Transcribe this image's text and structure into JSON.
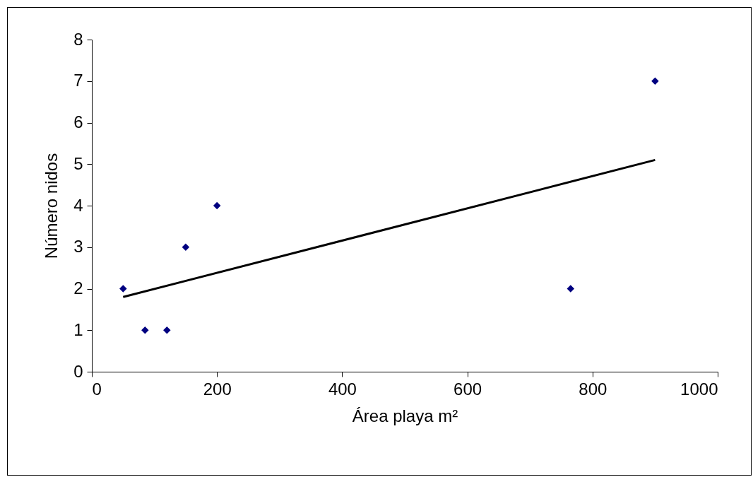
{
  "chart_data": {
    "type": "scatter",
    "xlabel": "Área playa m²",
    "ylabel": "Número nidos",
    "xlim": [
      0,
      1000
    ],
    "xticks": [
      0,
      200,
      400,
      600,
      800,
      1000
    ],
    "ylim": [
      0,
      8
    ],
    "yticks": [
      0,
      1,
      2,
      3,
      4,
      5,
      6,
      7,
      8
    ],
    "grid": false,
    "marker": "diamond",
    "series": [
      {
        "color": "#000080",
        "x": [
          50,
          85,
          120,
          150,
          200,
          765,
          900
        ],
        "values": [
          2,
          1,
          1,
          3,
          4,
          2,
          7
        ]
      },
      {
        "type": "line",
        "color": "#000000",
        "x": [
          50,
          900
        ],
        "values": [
          1.8,
          5.1
        ],
        "marker": "none",
        "line_style": "solid"
      }
    ]
  }
}
